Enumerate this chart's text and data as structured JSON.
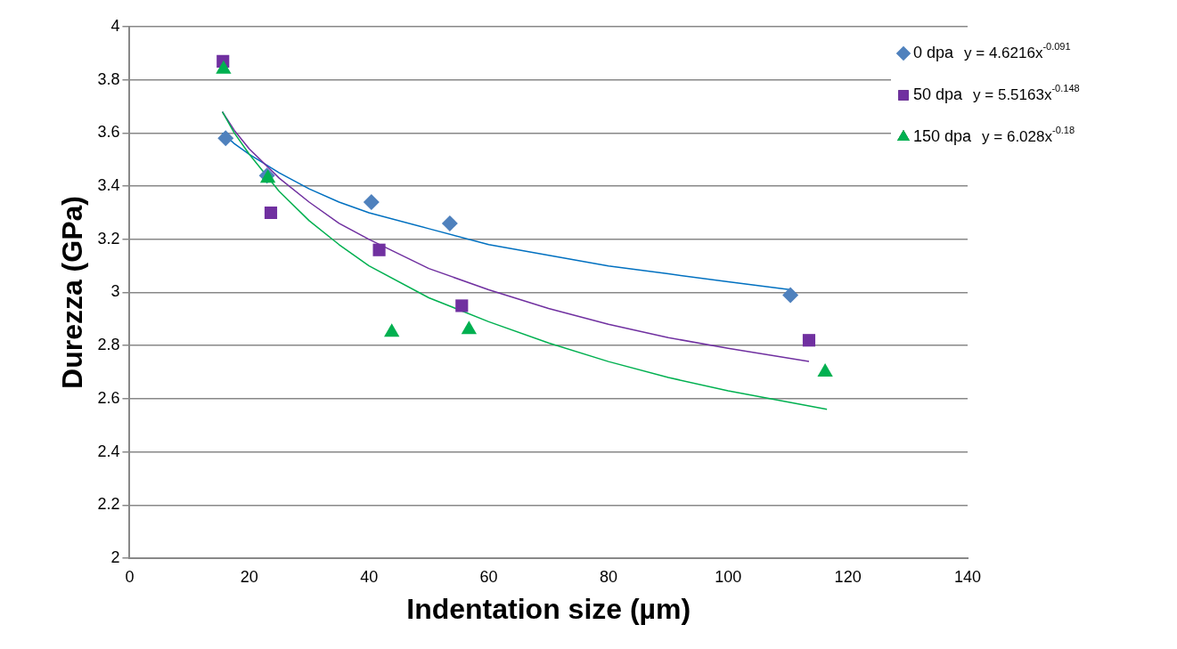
{
  "chart_data": {
    "type": "scatter",
    "xlabel": "Indentation size (µm)",
    "ylabel": "Durezza (GPa)",
    "xlim": [
      0,
      140
    ],
    "xticks": [
      0,
      20,
      40,
      60,
      80,
      100,
      120,
      140
    ],
    "ylim": [
      2,
      4
    ],
    "yticks": [
      2,
      2.2,
      2.4,
      2.6,
      2.8,
      3,
      3.2,
      3.4,
      3.6,
      3.8,
      4
    ],
    "grid": "y",
    "legend": "top right",
    "annotations": [
      "y = 4.6216x$^{-0.091}$",
      "y = 5.5163x$^{-0.148}$",
      "y = 6.028x$^{-0.18}$"
    ],
    "series": [
      {
        "type": "scatter",
        "name": "0 dpa",
        "color": "#4f81bd",
        "marker": "diamond",
        "x": [
          16.05,
          22.95,
          40.4,
          53.5,
          110.4
        ],
        "values": [
          3.58,
          3.44,
          3.34,
          3.26,
          2.99
        ]
      },
      {
        "type": "scatter",
        "name": "50 dpa",
        "color": "#7030a0",
        "marker": "square",
        "x": [
          15.6,
          23.6,
          41.7,
          55.5,
          113.5
        ],
        "values": [
          3.87,
          3.3,
          3.16,
          2.95,
          2.82
        ]
      },
      {
        "type": "scatter",
        "name": "150 dpa",
        "color": "#00b050",
        "marker": "triangle",
        "x": [
          15.7,
          23.1,
          43.8,
          56.7,
          116.2
        ],
        "values": [
          3.84,
          3.43,
          2.85,
          2.86,
          2.7
        ]
      },
      {
        "type": "line",
        "color": "#0070c0",
        "marker": "none",
        "x": [
          15.5,
          17.5,
          20,
          25,
          30,
          35,
          40,
          50,
          60,
          70,
          80,
          90,
          100,
          110.5
        ],
        "values": [
          3.6,
          3.56,
          3.52,
          3.45,
          3.39,
          3.34,
          3.3,
          3.24,
          3.18,
          3.14,
          3.1,
          3.07,
          3.04,
          3.01
        ]
      },
      {
        "type": "line",
        "color": "#7030a0",
        "marker": "none",
        "x": [
          15.5,
          17.5,
          20,
          25,
          30,
          35,
          40,
          50,
          60,
          70,
          80,
          90,
          100,
          113.5
        ],
        "values": [
          3.68,
          3.61,
          3.54,
          3.43,
          3.34,
          3.26,
          3.2,
          3.09,
          3.01,
          2.94,
          2.88,
          2.83,
          2.79,
          2.74
        ]
      },
      {
        "type": "line",
        "color": "#00b050",
        "marker": "none",
        "x": [
          15.5,
          17.5,
          20,
          25,
          30,
          35,
          40,
          50,
          60,
          70,
          80,
          90,
          100,
          116.5
        ],
        "values": [
          3.68,
          3.6,
          3.52,
          3.38,
          3.27,
          3.18,
          3.1,
          2.98,
          2.89,
          2.81,
          2.74,
          2.68,
          2.63,
          2.56
        ]
      }
    ]
  }
}
